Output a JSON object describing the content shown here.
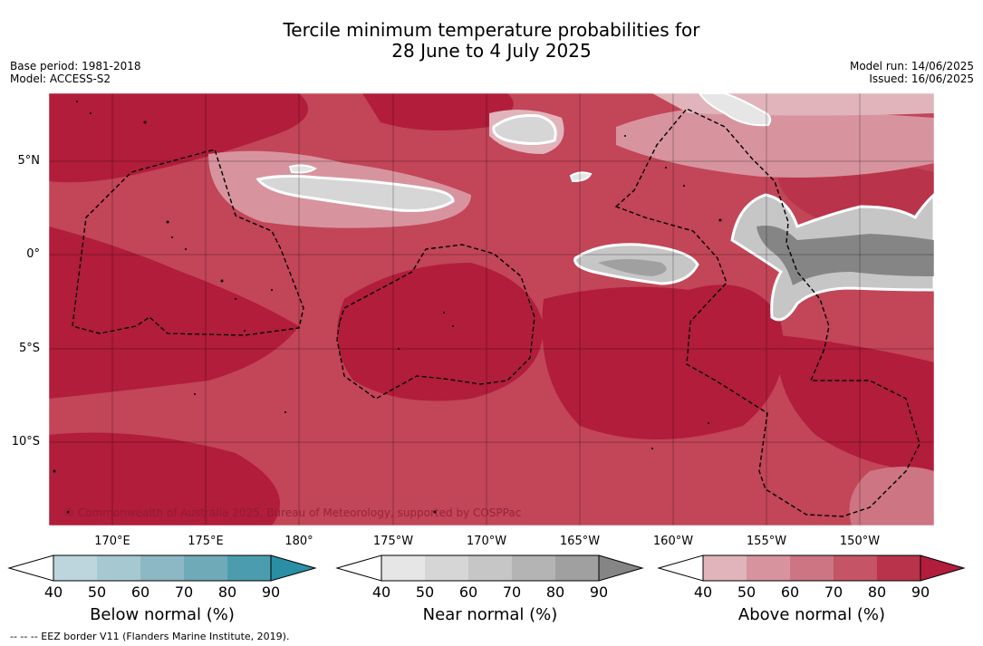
{
  "title": {
    "line1": "Tercile minimum temperature probabilities for",
    "line2": "28 June to 4 July 2025"
  },
  "meta_left": {
    "base_period": "Base period: 1981-2018",
    "model": "Model: ACCESS-S2"
  },
  "meta_right": {
    "model_run": "Model run: 14/06/2025",
    "issued": "Issued: 16/06/2025"
  },
  "map": {
    "lat_labels": [
      "5°N",
      "0°",
      "5°S",
      "10°S"
    ],
    "lon_labels": [
      "170°E",
      "175°E",
      "180°",
      "175°W",
      "170°W",
      "165°W",
      "160°W",
      "155°W",
      "150°W"
    ],
    "copyright": "© Commonwealth of Australia 2025, Bureau of Meteorology, supported by COSPPac"
  },
  "colorbars": [
    {
      "title": "Below normal (%)",
      "ticks": [
        "40",
        "50",
        "60",
        "70",
        "80",
        "90"
      ],
      "colors": [
        "#ffffff",
        "#bdd5dd",
        "#a6c9d1",
        "#8bb8c4",
        "#6eaab8",
        "#4b9dae",
        "#2a8ea5"
      ]
    },
    {
      "title": "Near normal (%)",
      "ticks": [
        "40",
        "50",
        "60",
        "70",
        "80",
        "90"
      ],
      "colors": [
        "#ffffff",
        "#e6e6e6",
        "#d6d6d6",
        "#c6c6c6",
        "#b4b4b4",
        "#a0a0a0",
        "#858585"
      ]
    },
    {
      "title": "Above normal (%)",
      "ticks": [
        "40",
        "50",
        "60",
        "70",
        "80",
        "90"
      ],
      "colors": [
        "#ffffff",
        "#e0b4ba",
        "#d7949e",
        "#cd7582",
        "#c45466",
        "#b9334a",
        "#b11d3b"
      ]
    }
  ],
  "footnote": "-- -- -- EEZ border V11 (Flanders Marine Institute, 2019)."
}
